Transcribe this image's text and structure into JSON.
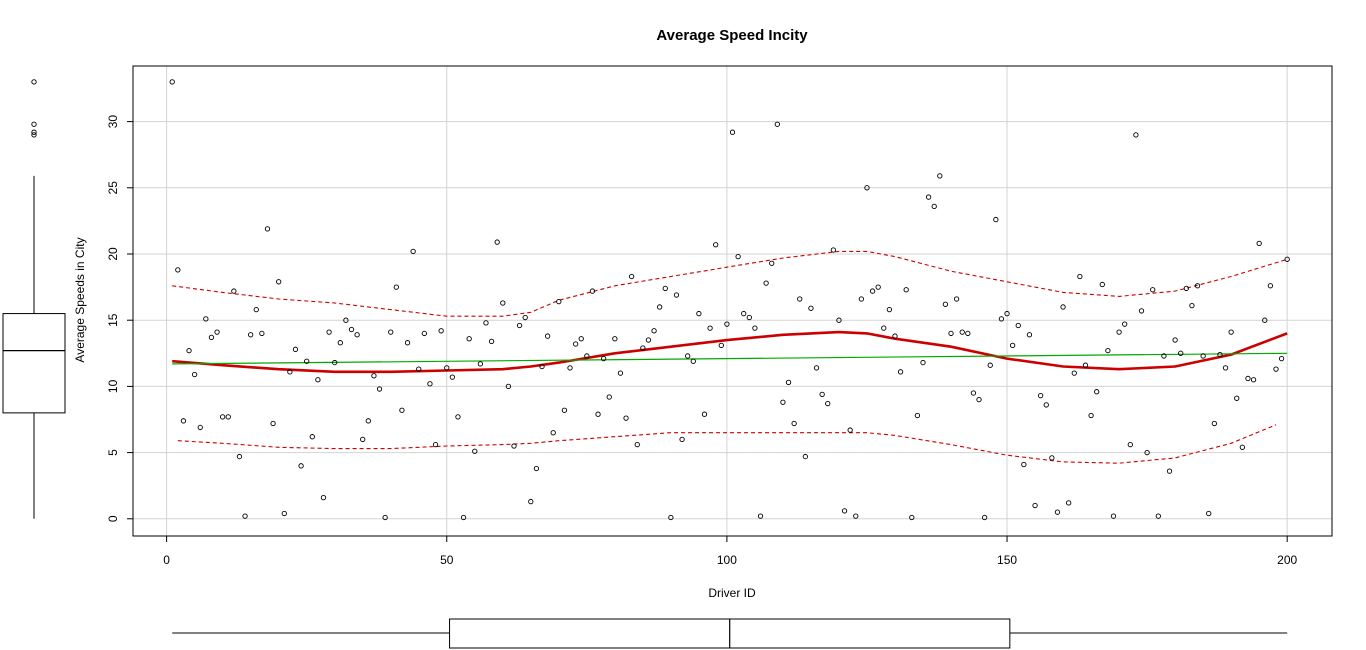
{
  "chart_data": {
    "type": "scatter",
    "title": "Average Speed Incity",
    "xlabel": "Driver ID",
    "ylabel": "Average Speeds in City",
    "xlim": [
      -6,
      208
    ],
    "ylim": [
      -1.3,
      34.2
    ],
    "x_ticks": [
      0,
      50,
      100,
      150,
      200
    ],
    "y_ticks": [
      0,
      5,
      10,
      15,
      20,
      25,
      30
    ],
    "x_tick_labels": [
      "0",
      "50",
      "100",
      "150",
      "200"
    ],
    "y_tick_labels": [
      "0",
      "5",
      "10",
      "15",
      "20",
      "25",
      "30"
    ],
    "grid": true,
    "series": [
      {
        "kind": "points",
        "x": [
          1,
          2,
          3,
          4,
          5,
          6,
          7,
          8,
          9,
          10,
          11,
          12,
          13,
          14,
          15,
          16,
          17,
          18,
          19,
          20,
          21,
          22,
          23,
          24,
          25,
          26,
          27,
          28,
          29,
          30,
          31,
          32,
          33,
          34,
          35,
          36,
          37,
          38,
          39,
          40,
          41,
          42,
          43,
          44,
          45,
          46,
          47,
          48,
          49,
          50,
          51,
          52,
          53,
          54,
          55,
          56,
          57,
          58,
          59,
          60,
          61,
          62,
          63,
          64,
          65,
          66,
          67,
          68,
          69,
          70,
          71,
          72,
          73,
          74,
          75,
          76,
          77,
          78,
          79,
          80,
          81,
          82,
          83,
          84,
          85,
          86,
          87,
          88,
          89,
          90,
          91,
          92,
          93,
          94,
          95,
          96,
          97,
          98,
          99,
          100,
          101,
          102,
          103,
          104,
          105,
          106,
          107,
          108,
          109,
          110,
          111,
          112,
          113,
          114,
          115,
          116,
          117,
          118,
          119,
          120,
          121,
          122,
          123,
          124,
          125,
          126,
          127,
          128,
          129,
          130,
          131,
          132,
          133,
          134,
          135,
          136,
          137,
          138,
          139,
          140,
          141,
          142,
          143,
          144,
          145,
          146,
          147,
          148,
          149,
          150,
          151,
          152,
          153,
          154,
          155,
          156,
          157,
          158,
          159,
          160,
          161,
          162,
          163,
          164,
          165,
          166,
          167,
          168,
          169,
          170,
          171,
          172,
          173,
          174,
          175,
          176,
          177,
          178,
          179,
          180,
          181,
          182,
          183,
          184,
          185,
          186,
          187,
          188,
          189,
          190,
          191,
          192,
          193,
          194,
          195,
          196,
          197,
          198,
          199,
          200
        ],
        "y": [
          33.0,
          18.8,
          7.4,
          12.7,
          10.9,
          6.9,
          15.1,
          13.7,
          14.1,
          7.7,
          7.7,
          17.2,
          4.7,
          0.2,
          13.9,
          15.8,
          14.0,
          21.9,
          7.2,
          17.9,
          0.4,
          11.1,
          12.8,
          4.0,
          11.9,
          6.2,
          10.5,
          1.6,
          14.1,
          11.8,
          13.3,
          15.0,
          14.3,
          13.9,
          6.0,
          7.4,
          10.8,
          9.8,
          0.1,
          14.1,
          17.5,
          8.2,
          13.3,
          20.2,
          11.3,
          14.0,
          10.2,
          5.6,
          14.2,
          11.4,
          10.7,
          7.7,
          0.1,
          13.6,
          5.1,
          11.7,
          14.8,
          13.4,
          20.9,
          16.3,
          10.0,
          5.5,
          14.6,
          15.2,
          1.3,
          3.8,
          11.5,
          13.8,
          6.5,
          16.4,
          8.2,
          11.4,
          13.2,
          13.6,
          12.3,
          17.2,
          7.9,
          12.1,
          9.2,
          13.6,
          11.0,
          7.6,
          18.3,
          5.6,
          12.9,
          13.5,
          14.2,
          16.0,
          17.4,
          0.1,
          16.9,
          6.0,
          12.3,
          11.9,
          15.5,
          7.9,
          14.4,
          20.7,
          13.1,
          14.7,
          29.2,
          19.8,
          15.5,
          15.2,
          14.4,
          0.2,
          17.8,
          19.3,
          29.8,
          8.8,
          10.3,
          7.2,
          16.6,
          4.7,
          15.9,
          11.4,
          9.4,
          8.7,
          20.3,
          15.0,
          0.6,
          6.7,
          0.2,
          16.6,
          25.0,
          17.2,
          17.5,
          14.4,
          15.8,
          13.8,
          11.1,
          17.3,
          0.1,
          7.8,
          11.8,
          24.3,
          23.6,
          25.9,
          16.2,
          14.0,
          16.6,
          14.1,
          14.0,
          9.5,
          9.0,
          0.1,
          11.6,
          22.6,
          15.1,
          15.5,
          13.1,
          14.6,
          4.1,
          13.9,
          1.0,
          9.3,
          8.6,
          4.6,
          0.5,
          16.0,
          1.2,
          11.0,
          18.3,
          11.6,
          7.8,
          9.6,
          17.7,
          12.7,
          0.2,
          14.1,
          14.7,
          5.6,
          29.0,
          15.7,
          5.0,
          17.3,
          0.2,
          12.3,
          3.6,
          13.5,
          12.5,
          17.4,
          16.1,
          17.6,
          12.3,
          0.4,
          7.2,
          12.4,
          11.4,
          14.1,
          9.1,
          5.4,
          10.6,
          10.5,
          20.8,
          15.0,
          17.6,
          11.3,
          12.1,
          19.6
        ]
      },
      {
        "kind": "smoother",
        "x": [
          1,
          10,
          20,
          30,
          40,
          50,
          60,
          65,
          70,
          80,
          90,
          100,
          110,
          120,
          125,
          130,
          140,
          150,
          160,
          170,
          180,
          190,
          200
        ],
        "y": [
          11.9,
          11.6,
          11.3,
          11.1,
          11.1,
          11.2,
          11.3,
          11.5,
          11.8,
          12.5,
          13.0,
          13.5,
          13.9,
          14.1,
          14.0,
          13.6,
          13.0,
          12.1,
          11.5,
          11.3,
          11.5,
          12.4,
          14.0
        ],
        "color": "#cc0000"
      },
      {
        "kind": "smoother_upper",
        "x": [
          1,
          10,
          20,
          30,
          40,
          50,
          60,
          65,
          70,
          80,
          90,
          100,
          110,
          120,
          125,
          130,
          140,
          150,
          160,
          170,
          180,
          190,
          200
        ],
        "y": [
          17.6,
          17.1,
          16.6,
          16.3,
          15.8,
          15.3,
          15.3,
          15.6,
          16.5,
          17.6,
          18.3,
          19.0,
          19.7,
          20.2,
          20.2,
          19.8,
          18.7,
          17.9,
          17.1,
          16.8,
          17.2,
          18.3,
          19.6
        ],
        "color": "#cc0000"
      },
      {
        "kind": "smoother_lower",
        "x": [
          2,
          10,
          20,
          30,
          40,
          50,
          60,
          65,
          70,
          80,
          90,
          100,
          110,
          120,
          125,
          130,
          140,
          150,
          160,
          170,
          180,
          190,
          198
        ],
        "y": [
          5.9,
          5.7,
          5.4,
          5.3,
          5.3,
          5.5,
          5.6,
          5.7,
          5.9,
          6.2,
          6.5,
          6.5,
          6.5,
          6.5,
          6.5,
          6.3,
          5.6,
          4.8,
          4.3,
          4.2,
          4.6,
          5.7,
          7.1
        ],
        "color": "#cc0000"
      },
      {
        "kind": "linear_fit",
        "x": [
          1,
          200
        ],
        "y": [
          11.7,
          12.5
        ],
        "color": "#00aa00"
      }
    ],
    "marginal_boxplot_y": {
      "whisker_low": 0,
      "q1": 8.0,
      "median": 12.7,
      "q3": 15.5,
      "whisker_high": 25.9,
      "outliers": [
        33.0,
        29.8,
        29.2,
        29.0
      ]
    },
    "marginal_boxplot_x": {
      "whisker_low": 1,
      "q1": 50.5,
      "median": 100.5,
      "q3": 150.5,
      "whisker_high": 200
    }
  }
}
